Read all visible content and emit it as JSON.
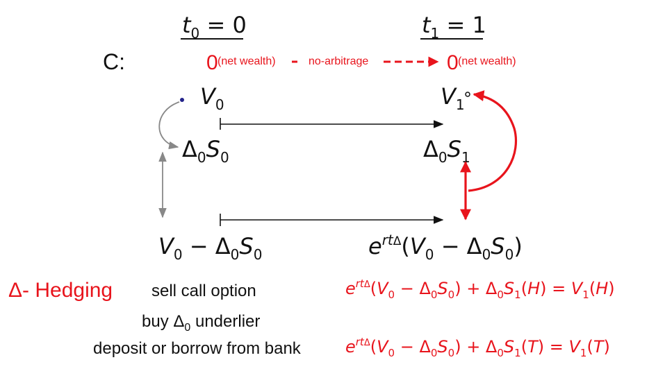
{
  "header": {
    "time0": {
      "symbol": "t",
      "sub": "0",
      "rest": " = 0"
    },
    "time1": {
      "symbol": "t",
      "sub": "1",
      "rest": " = 1"
    }
  },
  "row_c": {
    "label": "C:",
    "zero_left": "0",
    "net_wealth_left": "(net wealth)",
    "no_arbitrage": "no-arbitrage",
    "zero_right": "0",
    "net_wealth_right": "(net wealth)"
  },
  "nodes": {
    "v0": {
      "sym": "V",
      "sub": "0"
    },
    "v1": {
      "sym": "V",
      "sub": "1"
    },
    "delta0_s0": {
      "delta": "Δ",
      "dsub": "0",
      "sym": "S",
      "sub": "0"
    },
    "delta0_s1": {
      "delta": "Δ",
      "dsub": "0",
      "sym": "S",
      "sub": "1"
    },
    "bank0": "V0 − Δ0S0",
    "bank1": "e^{rtΔ}(V0 − Δ0S0)"
  },
  "legend": {
    "title": "Δ- Hedging",
    "step1": "sell call option",
    "step2": "buy Δ0 underlier",
    "step2_prefix": "buy ",
    "step2_delta": "Δ",
    "step2_sub": "0",
    "step2_suffix": " underlier",
    "step3": "deposit or borrow from bank"
  },
  "equations": {
    "heads": {
      "state": "H"
    },
    "tails": {
      "state": "T"
    }
  },
  "colors": {
    "accent": "#e8141c",
    "text": "#111111",
    "gray_arrow": "#888888"
  }
}
